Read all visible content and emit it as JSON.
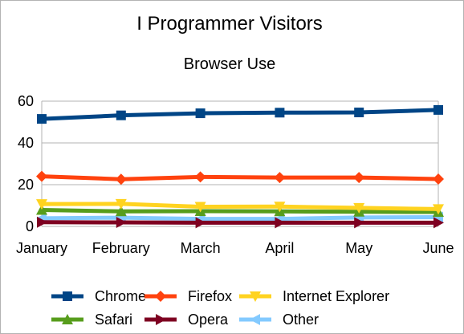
{
  "chart_data": {
    "type": "line",
    "title": "I Programmer Visitors",
    "subtitle": "Browser Use",
    "xlabel": "",
    "ylabel": "",
    "categories": [
      "January",
      "February",
      "March",
      "April",
      "May",
      "June"
    ],
    "ylim": [
      0,
      60
    ],
    "yticks": [
      "0",
      "20",
      "40",
      "60"
    ],
    "grid": "horizontal",
    "legend_position": "bottom",
    "series": [
      {
        "name": "Chrome",
        "color": "#004586",
        "marker": "square",
        "values": [
          51.5,
          53.2,
          54.2,
          54.5,
          54.6,
          55.8
        ]
      },
      {
        "name": "Firefox",
        "color": "#ff420e",
        "marker": "diamond",
        "values": [
          24.0,
          22.6,
          23.7,
          23.4,
          23.4,
          22.7
        ]
      },
      {
        "name": "Internet Explorer",
        "color": "#ffd320",
        "marker": "triangle-down",
        "values": [
          10.7,
          10.8,
          9.4,
          9.5,
          8.9,
          8.3
        ]
      },
      {
        "name": "Safari",
        "color": "#579d1c",
        "marker": "triangle-up",
        "values": [
          7.9,
          7.2,
          7.3,
          7.2,
          7.0,
          6.9
        ]
      },
      {
        "name": "Opera",
        "color": "#7e0021",
        "marker": "triangle-right",
        "values": [
          2.0,
          1.9,
          1.8,
          1.8,
          1.8,
          1.8
        ]
      },
      {
        "name": "Other",
        "color": "#83caff",
        "marker": "triangle-left",
        "values": [
          3.9,
          4.2,
          3.6,
          3.6,
          4.3,
          4.4
        ]
      }
    ]
  }
}
